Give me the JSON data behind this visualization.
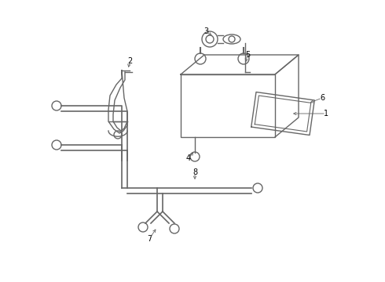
{
  "bg_color": "#ffffff",
  "line_color": "#666666",
  "label_color": "#000000",
  "lw": 1.0
}
